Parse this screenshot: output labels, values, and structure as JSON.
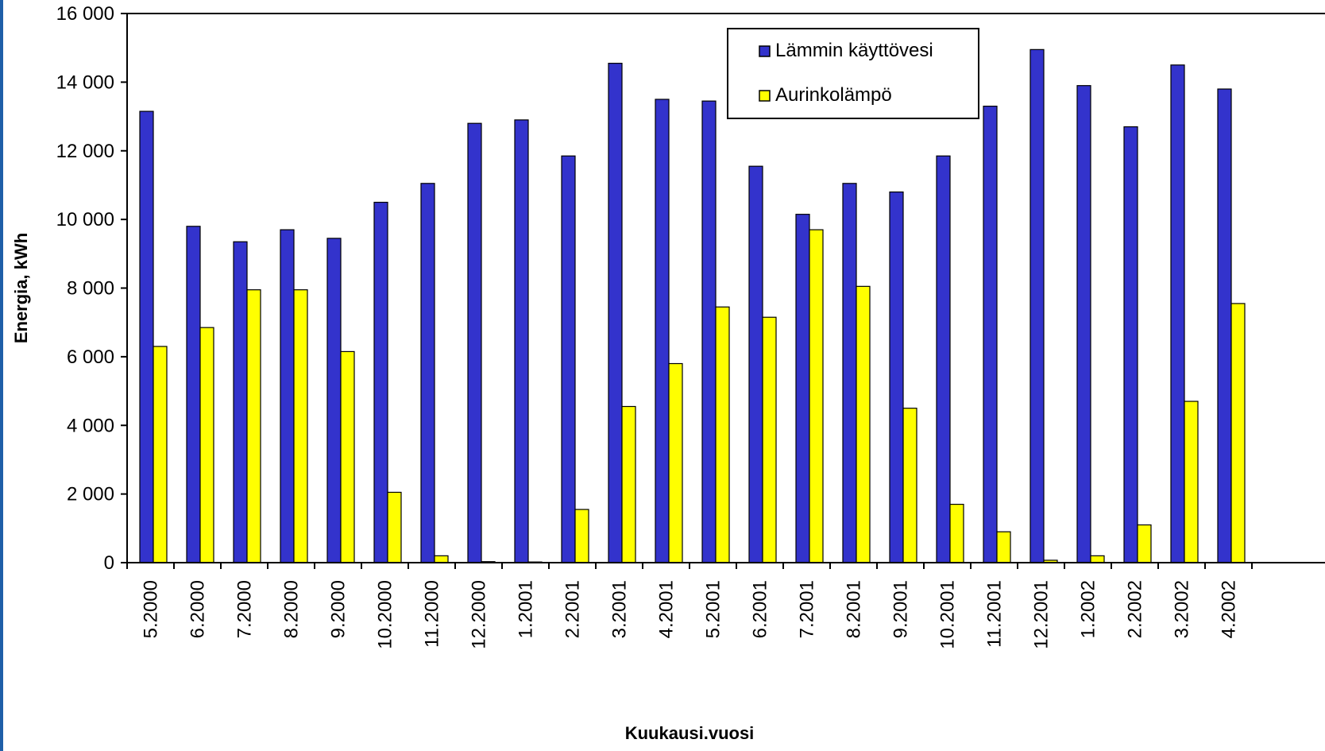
{
  "chart_data": {
    "type": "bar",
    "title": "",
    "xlabel": "Kuukausi.vuosi",
    "ylabel": "Energia, kWh",
    "ylim": [
      0,
      16000
    ],
    "yticks": [
      0,
      2000,
      4000,
      6000,
      8000,
      10000,
      12000,
      14000,
      16000
    ],
    "ytick_labels": [
      "0",
      "2 000",
      "4 000",
      "6 000",
      "8 000",
      "10 000",
      "12 000",
      "14 000",
      "16 000"
    ],
    "grid": false,
    "legend_position": "top-right",
    "categories": [
      "5.2000",
      "6.2000",
      "7.2000",
      "8.2000",
      "9.2000",
      "10.2000",
      "11.2000",
      "12.2000",
      "1.2001",
      "2.2001",
      "3.2001",
      "4.2001",
      "5.2001",
      "6.2001",
      "7.2001",
      "8.2001",
      "9.2001",
      "10.2001",
      "11.2001",
      "12.2001",
      "1.2002",
      "2.2002",
      "3.2002",
      "4.2002"
    ],
    "series": [
      {
        "name": "Lämmin käyttövesi",
        "color": "#3333cc",
        "values": [
          13150,
          9800,
          9350,
          9700,
          9450,
          10500,
          11050,
          12800,
          12900,
          11850,
          14550,
          13500,
          13450,
          11550,
          10150,
          11050,
          10800,
          11850,
          13300,
          14950,
          13900,
          12700,
          14500,
          13800
        ]
      },
      {
        "name": "Aurinkolämpö",
        "color": "#ffff00",
        "values": [
          6300,
          6850,
          7950,
          7950,
          6150,
          2050,
          200,
          30,
          20,
          1550,
          4550,
          5800,
          7450,
          7150,
          9700,
          8050,
          4500,
          1700,
          900,
          70,
          200,
          1100,
          4700,
          7550
        ]
      }
    ]
  }
}
